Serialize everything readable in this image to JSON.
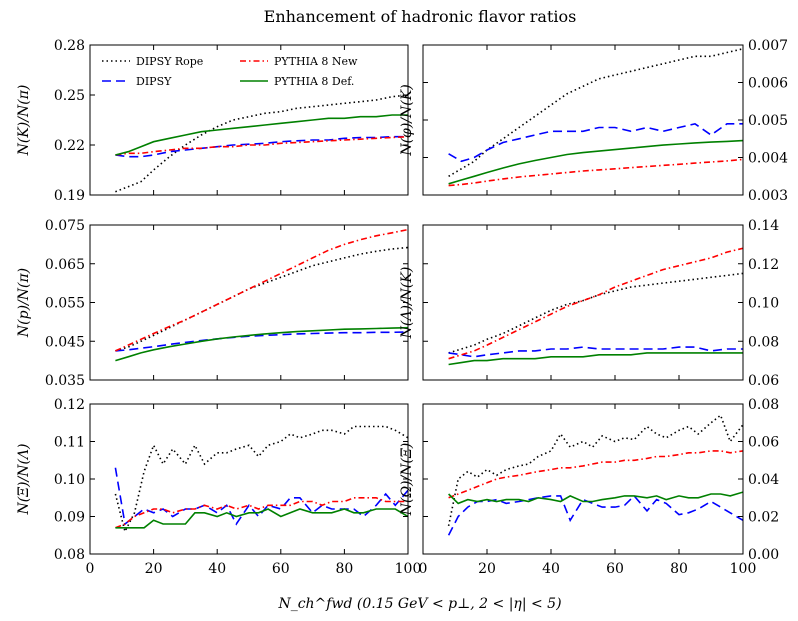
{
  "figure": {
    "title": "Enhancement of hadronic flavor ratios",
    "xlabel": "N_ch^fwd (0.15 GeV < p⊥, 2 < |η| < 5)"
  },
  "colors": {
    "dipsy_rope": "#000000",
    "dipsy": "#0000ff",
    "pythia_new": "#ff0000",
    "pythia_def": "#008000"
  },
  "chart_data": [
    {
      "type": "line",
      "panel": "top-left",
      "ylabel": "N(K)/N(π)",
      "xlim": [
        0,
        100
      ],
      "ylim": [
        0.19,
        0.28
      ],
      "xticks": [],
      "yticks": [
        "0.19",
        "0.22",
        "0.25",
        "0.28"
      ],
      "legend": "top-left",
      "x": [
        8,
        12,
        16,
        20,
        25,
        30,
        35,
        40,
        45,
        50,
        55,
        60,
        65,
        70,
        75,
        80,
        85,
        90,
        95,
        100
      ],
      "series": [
        {
          "name": "DIPSY Rope",
          "style": "dotted",
          "color": "#000000",
          "values": [
            0.192,
            0.195,
            0.198,
            0.205,
            0.213,
            0.22,
            0.226,
            0.231,
            0.235,
            0.237,
            0.239,
            0.24,
            0.242,
            0.243,
            0.244,
            0.245,
            0.246,
            0.247,
            0.249,
            0.25
          ]
        },
        {
          "name": "DIPSY",
          "style": "dashed",
          "color": "#0000ff",
          "values": [
            0.214,
            0.213,
            0.213,
            0.214,
            0.216,
            0.217,
            0.218,
            0.219,
            0.22,
            0.2205,
            0.221,
            0.222,
            0.2225,
            0.223,
            0.223,
            0.224,
            0.2245,
            0.2245,
            0.225,
            0.225
          ]
        },
        {
          "name": "PYTHIA 8 New",
          "style": "dashdot",
          "color": "#ff0000",
          "values": [
            0.214,
            0.215,
            0.215,
            0.216,
            0.217,
            0.218,
            0.218,
            0.219,
            0.219,
            0.22,
            0.22,
            0.221,
            0.2215,
            0.222,
            0.2225,
            0.223,
            0.2235,
            0.224,
            0.2245,
            0.225
          ]
        },
        {
          "name": "PYTHIA 8 Def.",
          "style": "solid",
          "color": "#008000",
          "values": [
            0.214,
            0.216,
            0.219,
            0.222,
            0.224,
            0.226,
            0.228,
            0.229,
            0.23,
            0.231,
            0.232,
            0.233,
            0.234,
            0.235,
            0.236,
            0.236,
            0.237,
            0.237,
            0.238,
            0.238
          ]
        }
      ]
    },
    {
      "type": "line",
      "panel": "top-right",
      "ylabel": "N(φ)/N(K)",
      "xlim": [
        0,
        100
      ],
      "ylim": [
        0.003,
        0.007
      ],
      "xticks": [],
      "yticks": [
        "0.003",
        "0.004",
        "0.005",
        "0.006",
        "0.007"
      ],
      "x": [
        8,
        12,
        16,
        20,
        25,
        30,
        35,
        40,
        45,
        50,
        55,
        60,
        65,
        70,
        75,
        80,
        85,
        90,
        95,
        100
      ],
      "series": [
        {
          "name": "DIPSY Rope",
          "style": "dotted",
          "color": "#000000",
          "values": [
            0.0035,
            0.0037,
            0.0039,
            0.0042,
            0.0045,
            0.0048,
            0.0051,
            0.0054,
            0.0057,
            0.0059,
            0.0061,
            0.0062,
            0.0063,
            0.0064,
            0.0065,
            0.0066,
            0.0067,
            0.0067,
            0.0068,
            0.0069
          ]
        },
        {
          "name": "DIPSY",
          "style": "dashed",
          "color": "#0000ff",
          "values": [
            0.0041,
            0.0039,
            0.004,
            0.0042,
            0.0044,
            0.0045,
            0.0046,
            0.0047,
            0.0047,
            0.0047,
            0.0048,
            0.0048,
            0.0047,
            0.0048,
            0.0047,
            0.0048,
            0.0049,
            0.0046,
            0.0049,
            0.0049
          ]
        },
        {
          "name": "PYTHIA 8 New",
          "style": "dashdot",
          "color": "#ff0000",
          "values": [
            0.00325,
            0.00328,
            0.00332,
            0.00337,
            0.00343,
            0.00348,
            0.00352,
            0.00356,
            0.0036,
            0.00364,
            0.00367,
            0.0037,
            0.00373,
            0.00376,
            0.00379,
            0.00382,
            0.00385,
            0.00388,
            0.00391,
            0.00395
          ]
        },
        {
          "name": "PYTHIA 8 Def.",
          "style": "solid",
          "color": "#008000",
          "values": [
            0.0033,
            0.0034,
            0.0035,
            0.0036,
            0.00372,
            0.00383,
            0.00392,
            0.004,
            0.00408,
            0.00413,
            0.00417,
            0.00421,
            0.00425,
            0.00429,
            0.00433,
            0.00436,
            0.00439,
            0.00441,
            0.00443,
            0.00445
          ]
        }
      ]
    },
    {
      "type": "line",
      "panel": "middle-left",
      "ylabel": "N(p)/N(π)",
      "xlim": [
        0,
        100
      ],
      "ylim": [
        0.035,
        0.075
      ],
      "xticks": [],
      "yticks": [
        "0.035",
        "0.045",
        "0.055",
        "0.065",
        "0.075"
      ],
      "x": [
        8,
        12,
        16,
        20,
        25,
        30,
        35,
        40,
        45,
        50,
        55,
        60,
        65,
        70,
        75,
        80,
        85,
        90,
        95,
        100
      ],
      "series": [
        {
          "name": "DIPSY Rope",
          "style": "dotted",
          "color": "#000000",
          "values": [
            0.0425,
            0.0435,
            0.045,
            0.0465,
            0.0485,
            0.0505,
            0.0525,
            0.0545,
            0.0565,
            0.0585,
            0.06,
            0.0615,
            0.063,
            0.0645,
            0.0655,
            0.0665,
            0.0675,
            0.0682,
            0.0688,
            0.0692
          ]
        },
        {
          "name": "DIPSY",
          "style": "dashed",
          "color": "#0000ff",
          "values": [
            0.0425,
            0.0428,
            0.0432,
            0.0436,
            0.0442,
            0.0447,
            0.0452,
            0.0456,
            0.046,
            0.0463,
            0.0465,
            0.0467,
            0.0469,
            0.047,
            0.0471,
            0.0472,
            0.0472,
            0.0473,
            0.0473,
            0.0474
          ]
        },
        {
          "name": "PYTHIA 8 New",
          "style": "dashdot",
          "color": "#ff0000",
          "values": [
            0.0425,
            0.044,
            0.0455,
            0.047,
            0.0488,
            0.0505,
            0.0525,
            0.0545,
            0.0565,
            0.0585,
            0.0605,
            0.0625,
            0.0645,
            0.0665,
            0.0685,
            0.07,
            0.0712,
            0.0722,
            0.073,
            0.0738
          ]
        },
        {
          "name": "PYTHIA 8 Def.",
          "style": "solid",
          "color": "#008000",
          "values": [
            0.04,
            0.041,
            0.042,
            0.0428,
            0.0436,
            0.0443,
            0.045,
            0.0456,
            0.0461,
            0.0465,
            0.0469,
            0.0472,
            0.0475,
            0.0477,
            0.0479,
            0.0481,
            0.0482,
            0.0483,
            0.0484,
            0.0485
          ]
        }
      ]
    },
    {
      "type": "line",
      "panel": "middle-right",
      "ylabel": "N(Λ)/N(K)",
      "xlim": [
        0,
        100
      ],
      "ylim": [
        0.06,
        0.14
      ],
      "xticks": [],
      "yticks": [
        "0.06",
        "0.08",
        "0.10",
        "0.12",
        "0.14"
      ],
      "x": [
        8,
        12,
        16,
        20,
        25,
        30,
        35,
        40,
        45,
        50,
        55,
        60,
        65,
        70,
        75,
        80,
        85,
        90,
        95,
        100
      ],
      "series": [
        {
          "name": "DIPSY Rope",
          "style": "dotted",
          "color": "#000000",
          "values": [
            0.074,
            0.076,
            0.078,
            0.081,
            0.084,
            0.088,
            0.092,
            0.096,
            0.099,
            0.101,
            0.104,
            0.106,
            0.108,
            0.109,
            0.11,
            0.111,
            0.112,
            0.113,
            0.114,
            0.115
          ]
        },
        {
          "name": "DIPSY",
          "style": "dashed",
          "color": "#0000ff",
          "values": [
            0.074,
            0.073,
            0.072,
            0.073,
            0.074,
            0.075,
            0.075,
            0.076,
            0.076,
            0.077,
            0.076,
            0.076,
            0.076,
            0.076,
            0.076,
            0.077,
            0.077,
            0.075,
            0.076,
            0.076
          ]
        },
        {
          "name": "PYTHIA 8 New",
          "style": "dashdot",
          "color": "#ff0000",
          "values": [
            0.071,
            0.073,
            0.075,
            0.078,
            0.082,
            0.086,
            0.09,
            0.094,
            0.098,
            0.101,
            0.104,
            0.108,
            0.111,
            0.114,
            0.117,
            0.119,
            0.121,
            0.123,
            0.126,
            0.128
          ]
        },
        {
          "name": "PYTHIA 8 Def.",
          "style": "solid",
          "color": "#008000",
          "values": [
            0.068,
            0.069,
            0.07,
            0.07,
            0.071,
            0.071,
            0.071,
            0.072,
            0.072,
            0.072,
            0.073,
            0.073,
            0.073,
            0.074,
            0.074,
            0.074,
            0.074,
            0.074,
            0.074,
            0.074
          ]
        }
      ]
    },
    {
      "type": "line",
      "panel": "bottom-left",
      "ylabel": "N(Ξ)/N(Λ)",
      "xlim": [
        0,
        100
      ],
      "ylim": [
        0.08,
        0.12
      ],
      "xticks": [
        "0",
        "20",
        "40",
        "60",
        "80",
        "100"
      ],
      "yticks": [
        "0.08",
        "0.09",
        "0.10",
        "0.11",
        "0.12"
      ],
      "x": [
        8,
        11,
        14,
        17,
        20,
        23,
        26,
        30,
        33,
        36,
        40,
        43,
        46,
        50,
        53,
        56,
        60,
        63,
        66,
        70,
        73,
        76,
        80,
        83,
        86,
        90,
        93,
        96,
        100
      ],
      "series": [
        {
          "name": "DIPSY Rope",
          "style": "dotted",
          "color": "#000000",
          "values": [
            0.096,
            0.086,
            0.091,
            0.102,
            0.109,
            0.104,
            0.108,
            0.104,
            0.109,
            0.104,
            0.107,
            0.107,
            0.108,
            0.109,
            0.106,
            0.109,
            0.11,
            0.112,
            0.111,
            0.112,
            0.113,
            0.113,
            0.112,
            0.114,
            0.114,
            0.114,
            0.114,
            0.113,
            0.111
          ]
        },
        {
          "name": "DIPSY",
          "style": "dashed",
          "color": "#0000ff",
          "values": [
            0.103,
            0.088,
            0.09,
            0.092,
            0.091,
            0.092,
            0.09,
            0.092,
            0.092,
            0.093,
            0.091,
            0.093,
            0.088,
            0.093,
            0.09,
            0.093,
            0.092,
            0.095,
            0.095,
            0.091,
            0.093,
            0.092,
            0.092,
            0.092,
            0.09,
            0.093,
            0.096,
            0.093,
            0.097
          ]
        },
        {
          "name": "PYTHIA 8 New",
          "style": "dashdot",
          "color": "#ff0000",
          "values": [
            0.087,
            0.088,
            0.09,
            0.091,
            0.092,
            0.092,
            0.091,
            0.092,
            0.092,
            0.093,
            0.092,
            0.093,
            0.092,
            0.093,
            0.092,
            0.093,
            0.093,
            0.093,
            0.094,
            0.094,
            0.093,
            0.094,
            0.094,
            0.095,
            0.095,
            0.095,
            0.094,
            0.094,
            0.094
          ]
        },
        {
          "name": "PYTHIA 8 Def.",
          "style": "solid",
          "color": "#008000",
          "values": [
            0.087,
            0.087,
            0.087,
            0.087,
            0.089,
            0.088,
            0.088,
            0.088,
            0.091,
            0.091,
            0.09,
            0.091,
            0.09,
            0.091,
            0.091,
            0.092,
            0.09,
            0.091,
            0.092,
            0.091,
            0.091,
            0.091,
            0.092,
            0.091,
            0.091,
            0.092,
            0.092,
            0.092,
            0.09
          ]
        }
      ]
    },
    {
      "type": "line",
      "panel": "bottom-right",
      "ylabel": "N(Ω)/N(Ξ)",
      "xlim": [
        0,
        100
      ],
      "ylim": [
        0.0,
        0.08
      ],
      "xticks": [
        "0",
        "20",
        "40",
        "60",
        "80",
        "100"
      ],
      "yticks": [
        "0.00",
        "0.02",
        "0.04",
        "0.06",
        "0.08"
      ],
      "x": [
        8,
        11,
        14,
        17,
        20,
        23,
        26,
        30,
        33,
        36,
        40,
        43,
        46,
        50,
        53,
        56,
        60,
        63,
        66,
        70,
        73,
        76,
        80,
        83,
        86,
        90,
        93,
        96,
        100
      ],
      "series": [
        {
          "name": "DIPSY Rope",
          "style": "dotted",
          "color": "#000000",
          "values": [
            0.015,
            0.04,
            0.044,
            0.041,
            0.045,
            0.042,
            0.045,
            0.047,
            0.048,
            0.052,
            0.055,
            0.064,
            0.057,
            0.06,
            0.057,
            0.063,
            0.06,
            0.062,
            0.061,
            0.068,
            0.064,
            0.062,
            0.066,
            0.068,
            0.064,
            0.07,
            0.074,
            0.06,
            0.069
          ]
        },
        {
          "name": "DIPSY",
          "style": "dashed",
          "color": "#0000ff",
          "values": [
            0.01,
            0.02,
            0.025,
            0.028,
            0.028,
            0.029,
            0.027,
            0.028,
            0.029,
            0.03,
            0.031,
            0.031,
            0.018,
            0.029,
            0.027,
            0.025,
            0.025,
            0.026,
            0.031,
            0.023,
            0.029,
            0.027,
            0.021,
            0.022,
            0.024,
            0.028,
            0.025,
            0.022,
            0.018
          ]
        },
        {
          "name": "PYTHIA 8 New",
          "style": "dashdot",
          "color": "#ff0000",
          "values": [
            0.03,
            0.032,
            0.034,
            0.036,
            0.038,
            0.04,
            0.041,
            0.042,
            0.043,
            0.044,
            0.045,
            0.046,
            0.046,
            0.047,
            0.048,
            0.049,
            0.049,
            0.05,
            0.05,
            0.051,
            0.052,
            0.052,
            0.053,
            0.054,
            0.054,
            0.055,
            0.055,
            0.054,
            0.055
          ]
        },
        {
          "name": "PYTHIA 8 Def.",
          "style": "solid",
          "color": "#008000",
          "values": [
            0.032,
            0.027,
            0.029,
            0.028,
            0.029,
            0.028,
            0.029,
            0.029,
            0.028,
            0.03,
            0.029,
            0.028,
            0.031,
            0.028,
            0.028,
            0.029,
            0.03,
            0.031,
            0.031,
            0.03,
            0.031,
            0.029,
            0.031,
            0.03,
            0.03,
            0.032,
            0.032,
            0.031,
            0.033
          ]
        }
      ]
    }
  ]
}
